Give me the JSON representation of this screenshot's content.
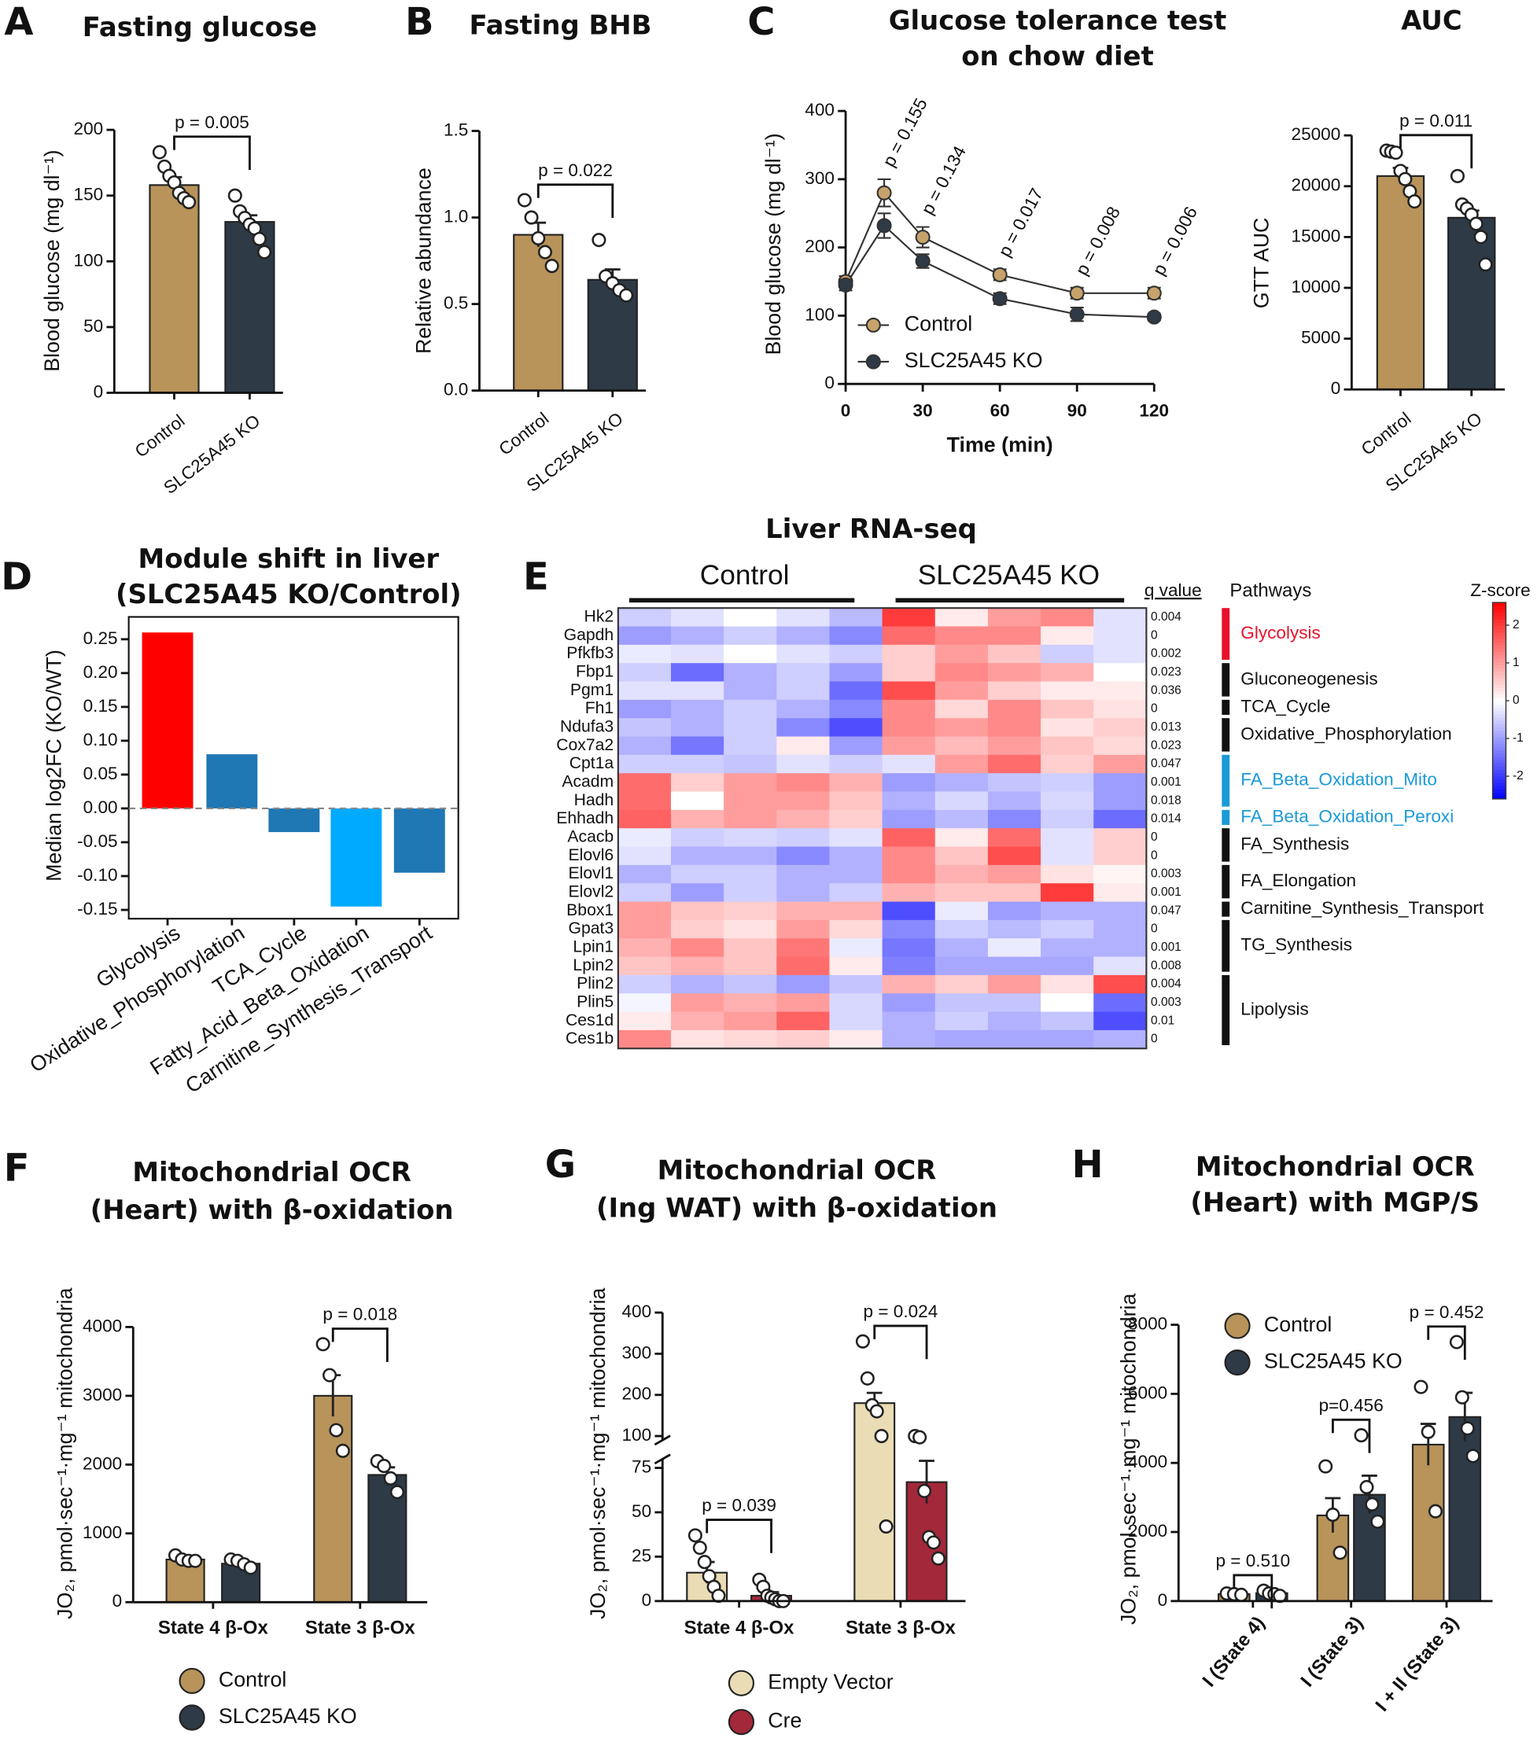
{
  "chart_data": [
    {
      "type": "bar",
      "panel": "A",
      "title": [
        "Fasting glucose"
      ],
      "ylabel": "Blood glucose (mg dl⁻¹)",
      "categories": [
        "Control",
        "SLC25A45 KO"
      ],
      "values": [
        158,
        130
      ],
      "errors": [
        6,
        5
      ],
      "points": [
        [
          183,
          172,
          165,
          160,
          152,
          148,
          145
        ],
        [
          150,
          138,
          133,
          128,
          125,
          117,
          107
        ]
      ],
      "colors": [
        "#b8935a",
        "#2e3a46"
      ],
      "ylim": [
        0,
        200
      ],
      "yticks": [
        0,
        50,
        100,
        150,
        200
      ],
      "annotations": [
        {
          "text": "p = 0.005"
        }
      ]
    },
    {
      "type": "bar",
      "panel": "B",
      "title": [
        "Fasting BHB"
      ],
      "ylabel": "Relative abundance",
      "categories": [
        "Control",
        "SLC25A45 KO"
      ],
      "values": [
        0.9,
        0.64
      ],
      "errors": [
        0.07,
        0.06
      ],
      "points": [
        [
          1.1,
          1.0,
          0.88,
          0.8,
          0.72
        ],
        [
          0.87,
          0.66,
          0.62,
          0.58,
          0.55
        ]
      ],
      "colors": [
        "#b8935a",
        "#2e3a46"
      ],
      "ylim": [
        0,
        1.5
      ],
      "yticks": [
        {
          "value": 0,
          "label": "0.0"
        },
        0.5,
        {
          "value": 1,
          "label": "1.0"
        },
        1.5
      ],
      "annotations": [
        {
          "text": "p = 0.022"
        }
      ]
    },
    {
      "type": "line",
      "panel": "C",
      "title": [
        "Glucose tolerance test",
        "on chow diet"
      ],
      "ylabel": "Blood glucose (mg dl⁻¹)",
      "xlabel": "Time (min)",
      "x": [
        0,
        15,
        30,
        60,
        90,
        120
      ],
      "series": [
        {
          "name": "Control",
          "color": "#c7a36b",
          "values": [
            150,
            280,
            215,
            160,
            133,
            133
          ],
          "errors": [
            8,
            20,
            15,
            8,
            8,
            8
          ]
        },
        {
          "name": "SLC25A45 KO",
          "color": "#2e3a46",
          "values": [
            145,
            232,
            180,
            125,
            102,
            98
          ],
          "errors": [
            8,
            18,
            10,
            8,
            10,
            5
          ]
        }
      ],
      "xlim": [
        0,
        120
      ],
      "xticks": [
        0,
        30,
        60,
        90,
        120
      ],
      "ylim": [
        0,
        400
      ],
      "yticks": [
        0,
        100,
        200,
        300,
        400
      ],
      "annotations": [
        {
          "text": "p = 0.155",
          "x": 15
        },
        {
          "text": "p = 0.134",
          "x": 30
        },
        {
          "text": "p = 0.017",
          "x": 60
        },
        {
          "text": "p = 0.008",
          "x": 90
        },
        {
          "text": "p = 0.006",
          "x": 120
        }
      ]
    },
    {
      "type": "bar",
      "title": [
        "AUC"
      ],
      "ylabel": "GTT AUC",
      "categories": [
        "Control",
        "SLC25A45 KO"
      ],
      "values": [
        21000,
        16900
      ],
      "errors": [
        800,
        700
      ],
      "points": [
        [
          23500,
          23400,
          23300,
          21500,
          20700,
          19500,
          18500
        ],
        [
          21000,
          18200,
          17800,
          17200,
          16300,
          15000,
          12300
        ]
      ],
      "colors": [
        "#b8935a",
        "#2e3a46"
      ],
      "ylim": [
        0,
        25000
      ],
      "yticks": [
        0,
        5000,
        10000,
        15000,
        20000,
        25000
      ],
      "annotations": [
        {
          "text": "p = 0.011"
        }
      ]
    },
    {
      "type": "bar",
      "panel": "D",
      "title": [
        "Module shift in liver",
        "(SLC25A45 KO/Control)"
      ],
      "ylabel": "Median log2FC (KO/WT)",
      "categories": [
        "Glycolysis",
        "Oxidative_Phosphorylation",
        "TCA_Cycle",
        "Fatty_Acid_Beta_Oxidation",
        "Carnitine_Synthesis_Transport"
      ],
      "values": [
        0.26,
        0.08,
        -0.035,
        -0.145,
        -0.095
      ],
      "colors": [
        "#ff0000",
        "#1f77b4",
        "#1f77b4",
        "#00aaff",
        "#1f77b4"
      ],
      "ylim": [
        -0.163,
        0.283
      ],
      "yticks": [
        {
          "value": -0.15,
          "label": "-0.15"
        },
        {
          "value": -0.1,
          "label": "-0.10"
        },
        -0.05,
        {
          "value": 0,
          "label": "0.00"
        },
        0.05,
        {
          "value": 0.1,
          "label": "0.10"
        },
        0.15,
        {
          "value": 0.2,
          "label": "0.20"
        },
        0.25
      ],
      "frame": true
    },
    {
      "type": "heatmap",
      "panel": "E",
      "title": [
        "Liver RNA-seq"
      ],
      "groups": [
        "Control",
        "SLC25A45  KO"
      ],
      "qlabel": "q value",
      "pathways_label": "Pathways",
      "zlabel": "Z-score",
      "zlim": [
        -2.6,
        2.6
      ],
      "zticks": [
        2,
        1,
        0,
        -1,
        -2
      ],
      "rows": [
        "Hk2",
        "Gapdh",
        "Pfkfb3",
        "Fbp1",
        "Pgm1",
        "Fh1",
        "Ndufa3",
        "Cox7a2",
        "Cpt1a",
        "Acadm",
        "Hadh",
        "Ehhadh",
        "Acacb",
        "Elovl6",
        "Elovl1",
        "Elovl2",
        "Bbox1",
        "Gpat3",
        "Lpin1",
        "Lpin2",
        "Plin2",
        "Plin5",
        "Ces1d",
        "Ces1b"
      ],
      "qvalues": [
        0.004,
        0,
        0.002,
        0.023,
        0.036,
        0,
        0.013,
        0.023,
        0.047,
        0.001,
        0.018,
        0.014,
        0,
        0,
        0.003,
        0.001,
        0.047,
        0,
        0.001,
        0.008,
        0.004,
        0.003,
        0.01,
        0
      ],
      "values": [
        [
          -0.5,
          -0.3,
          0,
          -0.3,
          -0.7,
          2,
          0.2,
          1,
          1.2,
          -0.3
        ],
        [
          -1,
          -0.8,
          -0.5,
          -0.8,
          -1.2,
          1.5,
          1.2,
          1.2,
          0.2,
          -0.3
        ],
        [
          -0.2,
          -0.3,
          0,
          -0.3,
          -0.5,
          0.5,
          1,
          0.6,
          -0.5,
          -0.3
        ],
        [
          -0.5,
          -1.5,
          -0.8,
          -0.5,
          -1,
          0.5,
          1.2,
          1,
          0.8,
          0
        ],
        [
          -0.3,
          -0.3,
          -0.8,
          -0.5,
          -1.5,
          1.8,
          1,
          0.5,
          0.2,
          0.2
        ],
        [
          -1,
          -0.8,
          -0.5,
          -0.8,
          -1.2,
          1.2,
          0.4,
          1.2,
          0.6,
          0.3
        ],
        [
          -0.6,
          -0.8,
          -0.5,
          -1.2,
          -1.8,
          1.2,
          1,
          1.2,
          0.3,
          0.5
        ],
        [
          -0.8,
          -1.4,
          -0.5,
          0.2,
          -1,
          1,
          0.7,
          1,
          0.6,
          0.4
        ],
        [
          -0.5,
          -0.5,
          -0.6,
          -0.3,
          -0.5,
          -0.3,
          1,
          1.5,
          0.5,
          1
        ],
        [
          1.5,
          0.5,
          1,
          1.2,
          0.8,
          -1,
          -0.8,
          -0.6,
          -0.5,
          -1
        ],
        [
          1.5,
          0,
          1,
          1,
          0.6,
          -0.8,
          -0.4,
          -0.8,
          -0.4,
          -1
        ],
        [
          1.6,
          0.8,
          1,
          0.8,
          0.5,
          -1,
          -0.7,
          -1.2,
          -0.5,
          -1.5
        ],
        [
          -0.2,
          -0.5,
          -0.4,
          -0.5,
          -0.3,
          1.6,
          0.2,
          1.5,
          -0.3,
          0.5
        ],
        [
          -0.3,
          -0.8,
          -0.8,
          -1.2,
          -0.8,
          1.2,
          0.6,
          1.8,
          -0.3,
          0.5
        ],
        [
          -0.8,
          -0.5,
          -0.5,
          -0.8,
          -0.8,
          1.2,
          0.8,
          1,
          0.3,
          0.1
        ],
        [
          -0.5,
          -1,
          -0.5,
          -0.8,
          -0.5,
          0.8,
          0.6,
          0.6,
          2,
          0.2
        ],
        [
          1,
          0.6,
          0.5,
          0.8,
          0.8,
          -1.8,
          -0.2,
          -1,
          -0.8,
          -0.8
        ],
        [
          1,
          0.5,
          0.3,
          1,
          0.4,
          -1.2,
          -0.5,
          -0.7,
          -0.5,
          -0.8
        ],
        [
          0.8,
          1.2,
          0.6,
          1.4,
          -0.2,
          -1.4,
          -0.8,
          -0.2,
          -0.8,
          -0.8
        ],
        [
          0.6,
          0.8,
          0.6,
          1.5,
          0.2,
          -1.3,
          -0.9,
          -0.9,
          -0.9,
          -0.3
        ],
        [
          -0.5,
          -0.8,
          -0.6,
          -1,
          -0.6,
          0.8,
          0.5,
          1,
          0.3,
          1.8
        ],
        [
          -0.1,
          1,
          0.8,
          1,
          -0.4,
          -1,
          -0.6,
          -0.6,
          0,
          -1.5
        ],
        [
          0.2,
          0.8,
          1,
          1.6,
          -0.4,
          -0.8,
          -0.5,
          -0.8,
          -0.6,
          -1.8
        ],
        [
          1.2,
          0.3,
          0.4,
          0.5,
          0.2,
          -0.8,
          -0.9,
          -0.9,
          -0.9,
          -0.8
        ]
      ],
      "pathways": [
        {
          "name": "Glycolysis",
          "color": "#e8102a",
          "rows": [
            0,
            2
          ]
        },
        {
          "name": "Gluconeogenesis",
          "color": "#111111",
          "rows": [
            3,
            4
          ]
        },
        {
          "name": "TCA_Cycle",
          "color": "#111111",
          "rows": [
            5,
            5
          ]
        },
        {
          "name": "Oxidative_Phosphorylation",
          "color": "#111111",
          "rows": [
            6,
            7
          ]
        },
        {
          "name": "FA_Beta_Oxidation_Mito",
          "color": "#1a9ad6",
          "rows": [
            8,
            10
          ]
        },
        {
          "name": "FA_Beta_Oxidation_Peroxi",
          "color": "#1a9ad6",
          "rows": [
            11,
            11
          ]
        },
        {
          "name": "FA_Synthesis",
          "color": "#111111",
          "rows": [
            12,
            13
          ]
        },
        {
          "name": "FA_Elongation",
          "color": "#111111",
          "rows": [
            14,
            15
          ]
        },
        {
          "name": "Carnitine_Synthesis_Transport",
          "color": "#111111",
          "rows": [
            16,
            16
          ]
        },
        {
          "name": "TG_Synthesis",
          "color": "#111111",
          "rows": [
            17,
            19
          ]
        },
        {
          "name": "Lipolysis",
          "color": "#111111",
          "rows": [
            20,
            23
          ]
        }
      ]
    },
    {
      "type": "bar",
      "panel": "F",
      "title": [
        "Mitochondrial OCR",
        "(Heart) with β-oxidation"
      ],
      "ylabel": "JO₂, pmol·sec⁻¹·mg⁻¹ mitochondria",
      "categories": [
        "State 4 β-Ox",
        "State 3 β-Ox"
      ],
      "series": [
        {
          "name": "Control",
          "color": "#b8935a",
          "values": [
            620,
            3000
          ],
          "errors": [
            40,
            300
          ],
          "points": [
            [
              680,
              620,
              600,
              600
            ],
            [
              3750,
              3300,
              2500,
              2200
            ]
          ]
        },
        {
          "name": "SLC25A45 KO",
          "color": "#2e3a46",
          "values": [
            560,
            1850
          ],
          "errors": [
            40,
            110
          ],
          "points": [
            [
              620,
              600,
              550,
              500
            ],
            [
              2050,
              1980,
              1800,
              1600
            ]
          ]
        }
      ],
      "ylim": [
        0,
        4000
      ],
      "yticks": [
        0,
        1000,
        2000,
        3000,
        4000
      ],
      "annotations": [
        {
          "text": "p = 0.018",
          "category": 1
        }
      ]
    },
    {
      "type": "bar",
      "panel": "G",
      "title": [
        "Mitochondrial OCR",
        "(Ing WAT) with β-oxidation"
      ],
      "ylabel": "JO₂, pmol·sec⁻¹·mg⁻¹ mitochondria",
      "categories": [
        "State 4 β-Ox",
        "State 3 β-Ox"
      ],
      "series": [
        {
          "name": "Empty Vector",
          "color": "#eadcb4",
          "values": [
            16,
            180
          ],
          "errors": [
            6,
            25
          ],
          "points": [
            [
              37,
              30,
              22,
              14,
              8,
              3
            ],
            [
              330,
              240,
              175,
              160,
              100,
              42
            ]
          ]
        },
        {
          "name": "Cre",
          "color": "#a3283a",
          "values": [
            3,
            67
          ],
          "errors": [
            2,
            12
          ],
          "points": [
            [
              12,
              8,
              3,
              2,
              1,
              0,
              0
            ],
            [
              100,
              97,
              62,
              36,
              33,
              24
            ]
          ]
        }
      ],
      "ylim": [
        0,
        400
      ],
      "ybreak": [
        80,
        90
      ],
      "yticks": [
        0,
        25,
        50,
        75,
        100,
        200,
        300,
        400
      ],
      "annotations": [
        {
          "text": "p = 0.039",
          "category": 0
        },
        {
          "text": "p = 0.024",
          "category": 1
        }
      ]
    },
    {
      "type": "bar",
      "panel": "H",
      "title": [
        "Mitochondrial OCR",
        "(Heart) with MGP/S"
      ],
      "ylabel": "JO₂, pmol·sec⁻¹·mg⁻¹ mitochondria",
      "categories": [
        "I (State 4)",
        "I (State 3)",
        "I + II (State 3)"
      ],
      "series": [
        {
          "name": "Control",
          "color": "#b8935a",
          "values": [
            200,
            2480,
            4530
          ],
          "errors": [
            40,
            500,
            600
          ],
          "points": [
            [
              220,
              200,
              180
            ],
            [
              3900,
              2500,
              1400
            ],
            [
              6200,
              4900,
              2600
            ]
          ]
        },
        {
          "name": "SLC25A45 KO",
          "color": "#2e3a46",
          "values": [
            230,
            3080,
            5330
          ],
          "errors": [
            40,
            550,
            700
          ],
          "points": [
            [
              300,
              220,
              200,
              150
            ],
            [
              4800,
              3300,
              2800,
              2300
            ],
            [
              7500,
              5900,
              5000,
              4200
            ]
          ]
        }
      ],
      "ylim": [
        0,
        8000
      ],
      "yticks": [
        0,
        2000,
        4000,
        6000,
        8000
      ],
      "annotations": [
        {
          "text": "p = 0.510",
          "category": 0
        },
        {
          "text": "p=0.456",
          "category": 1
        },
        {
          "text": "p = 0.452",
          "category": 2
        }
      ]
    }
  ]
}
